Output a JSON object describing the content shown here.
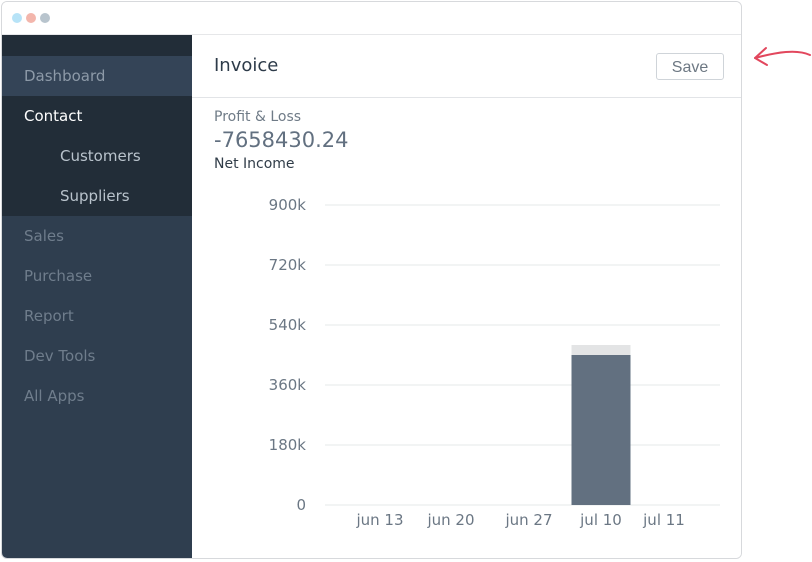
{
  "window": {
    "controls": [
      "close",
      "minimize",
      "maximize"
    ]
  },
  "sidebar": {
    "items": [
      {
        "label": "Dashboard"
      },
      {
        "label": "Contact"
      },
      {
        "label": "Customers"
      },
      {
        "label": "Suppliers"
      },
      {
        "label": "Sales"
      },
      {
        "label": "Purchase"
      },
      {
        "label": "Report"
      },
      {
        "label": "Dev Tools"
      },
      {
        "label": "All Apps"
      }
    ]
  },
  "header": {
    "title": "Invoice",
    "save_label": "Save"
  },
  "summary": {
    "label": "Profit & Loss",
    "value": "-7658430.24",
    "subtitle": "Net Income"
  },
  "colors": {
    "sidebar": "#2f3e4f",
    "sidebar_active": "#222d38",
    "bar": "#627080",
    "bar_top": "#e3e4e5",
    "annotation_arrow": "#e2475d"
  },
  "chart_data": {
    "type": "bar",
    "categories": [
      "jun 13",
      "jun 20",
      "jun 27",
      "jul 10",
      "jul 11"
    ],
    "series": [
      {
        "values": [
          0,
          0,
          0,
          450000,
          0
        ]
      },
      {
        "values": [
          0,
          0,
          0,
          30000,
          0
        ]
      }
    ],
    "stacked": true,
    "y_ticks": [
      "0",
      "180k",
      "360k",
      "540k",
      "720k",
      "900k"
    ],
    "ylim": [
      0,
      900000
    ],
    "grid": true
  }
}
